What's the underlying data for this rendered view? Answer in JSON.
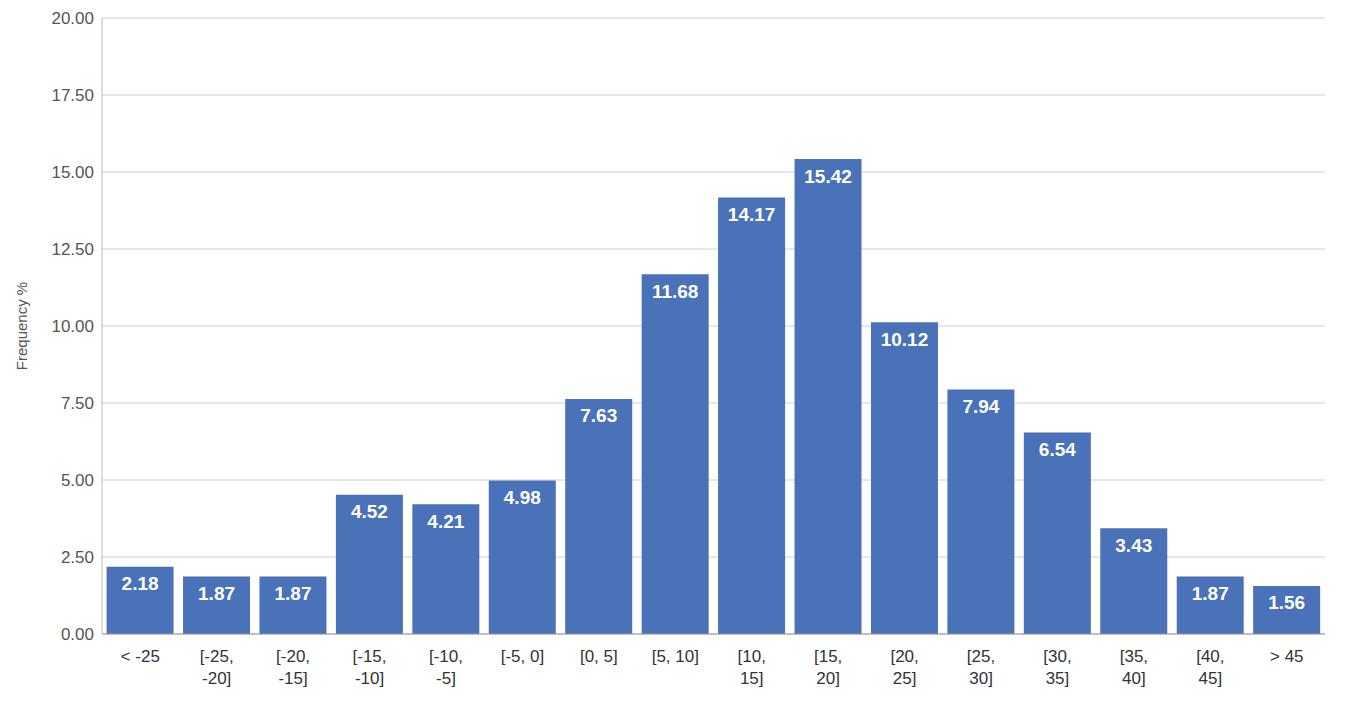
{
  "chart_data": {
    "type": "bar",
    "y_label": "Frequency %",
    "categories": [
      "< -25",
      "[-25, -20]",
      "[-20, -15]",
      "[-15, -10]",
      "[-10, -5]",
      "[-5, 0]",
      "[0, 5]",
      "[5, 10]",
      "[10, 15]",
      "[15, 20]",
      "[20, 25]",
      "[25, 30]",
      "[30, 35]",
      "[35, 40]",
      "[40, 45]",
      "> 45"
    ],
    "values": [
      2.18,
      1.87,
      1.87,
      4.52,
      4.21,
      4.98,
      7.63,
      11.68,
      14.17,
      15.42,
      10.12,
      7.94,
      6.54,
      3.43,
      1.87,
      1.56
    ],
    "color": "#4a72b8",
    "ylim": [
      0,
      20
    ],
    "yticks": [
      {
        "value": 0,
        "label": "0.00"
      },
      {
        "value": 2.5,
        "label": "2.50"
      },
      {
        "value": 5,
        "label": "5.00"
      },
      {
        "value": 7.5,
        "label": "7.50"
      },
      {
        "value": 10,
        "label": "10.00"
      },
      {
        "value": 12.5,
        "label": "12.50"
      },
      {
        "value": 15,
        "label": "15.00"
      },
      {
        "value": 17.5,
        "label": "17.50"
      },
      {
        "value": 20,
        "label": "20.00"
      }
    ],
    "grid": true,
    "data_labels": true
  }
}
